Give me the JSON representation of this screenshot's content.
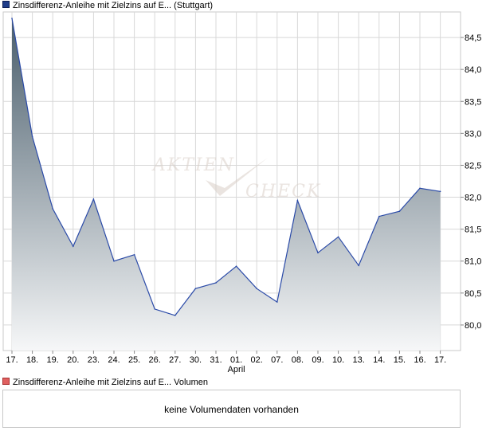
{
  "legend": {
    "price_series": "Zinsdifferenz-Anleihe mit Zielzins auf E... (Stuttgart)",
    "volume_series": "Zinsdifferenz-Anleihe mit Zielzins auf E... Volumen"
  },
  "watermark": {
    "line1": "AKTIEN",
    "line2": "CHECK"
  },
  "volume_panel": {
    "message": "keine Volumendaten vorhanden"
  },
  "colors": {
    "line": "#2a4aa8",
    "fill_top": "#4a5e6c",
    "fill_bottom": "#f6f7f8",
    "grid": "#d8d8d8",
    "frame": "#c8c8c8"
  },
  "chart_data": {
    "type": "area",
    "title": "",
    "xlabel": "",
    "ylabel": "",
    "ylim": [
      79.6,
      84.9
    ],
    "yticks": [
      80.0,
      80.5,
      81.0,
      81.5,
      82.0,
      82.5,
      83.0,
      83.5,
      84.0,
      84.5
    ],
    "ytick_labels": [
      "80,0",
      "80,5",
      "81,0",
      "81,5",
      "82,0",
      "82,5",
      "83,0",
      "83,5",
      "84,0",
      "84,5"
    ],
    "x_labels": [
      "17.",
      "18.",
      "19.",
      "20.",
      "23.",
      "24.",
      "25.",
      "26.",
      "27.",
      "30.",
      "31.",
      "01.",
      "02.",
      "07.",
      "08.",
      "09.",
      "10.",
      "13.",
      "14.",
      "15.",
      "16.",
      "17."
    ],
    "x_sublabels": [
      {
        "index": 11,
        "text": "April"
      }
    ],
    "grid": true,
    "legend_position": "top-left",
    "series": [
      {
        "name": "Zinsdifferenz-Anleihe mit Zielzins auf E... (Stuttgart)",
        "values": [
          84.8,
          82.95,
          81.82,
          81.23,
          81.97,
          81.0,
          81.1,
          80.25,
          80.15,
          80.57,
          80.66,
          80.92,
          80.57,
          80.36,
          81.95,
          81.13,
          81.38,
          80.93,
          81.7,
          81.78,
          82.14,
          82.09
        ]
      }
    ]
  }
}
